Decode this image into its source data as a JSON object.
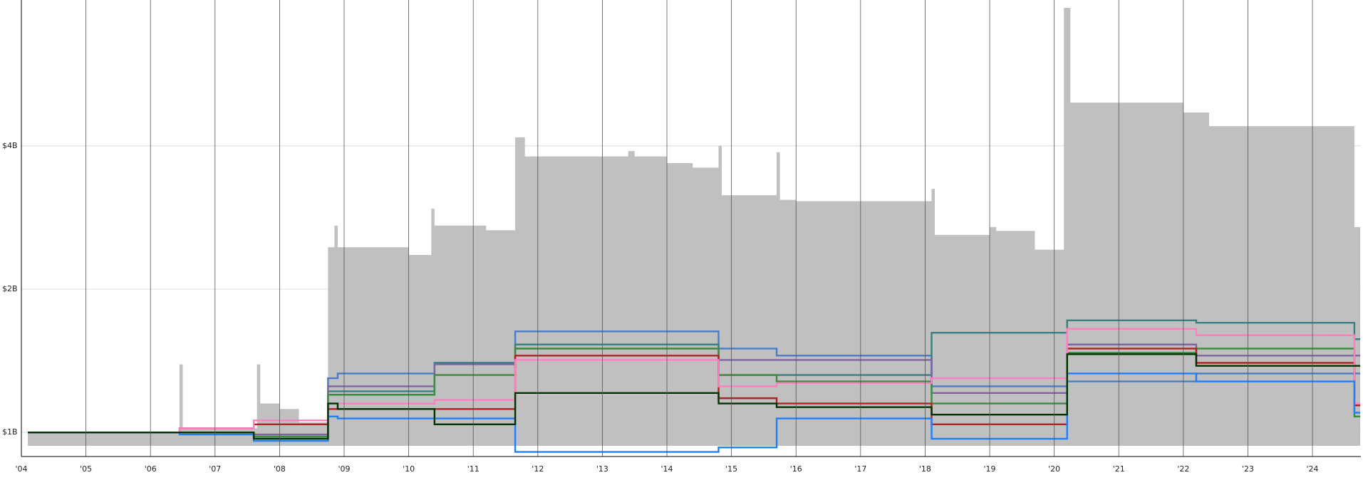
{
  "chart_data": {
    "type": "step",
    "log_scale": true,
    "grid": true,
    "xlim": [
      2004,
      2024.75
    ],
    "xticks": [
      {
        "value": 2004,
        "label": "'04"
      },
      {
        "value": 2005,
        "label": "'05"
      },
      {
        "value": 2006,
        "label": "'06"
      },
      {
        "value": 2007,
        "label": "'07"
      },
      {
        "value": 2008,
        "label": "'08"
      },
      {
        "value": 2009,
        "label": "'09"
      },
      {
        "value": 2010,
        "label": "'10"
      },
      {
        "value": 2011,
        "label": "'11"
      },
      {
        "value": 2012,
        "label": "'12"
      },
      {
        "value": 2013,
        "label": "'13"
      },
      {
        "value": 2014,
        "label": "'14"
      },
      {
        "value": 2015,
        "label": "'15"
      },
      {
        "value": 2016,
        "label": "'16"
      },
      {
        "value": 2017,
        "label": "'17"
      },
      {
        "value": 2018,
        "label": "'18"
      },
      {
        "value": 2019,
        "label": "'19"
      },
      {
        "value": 2020,
        "label": "'20"
      },
      {
        "value": 2021,
        "label": "'21"
      },
      {
        "value": 2022,
        "label": "'22"
      },
      {
        "value": 2023,
        "label": "'23"
      },
      {
        "value": 2024,
        "label": "'24"
      }
    ],
    "ylim": [
      0.89,
      8.1
    ],
    "yticks": [
      {
        "value": 1,
        "label": "$1B"
      },
      {
        "value": 2,
        "label": "$2B"
      },
      {
        "value": 4,
        "label": "$4B"
      }
    ],
    "series": [
      {
        "style": "area",
        "color": "#c0c0c0",
        "x": [
          2004.1,
          2006.4,
          2006.45,
          2006.5,
          2007.6,
          2007.65,
          2007.7,
          2008.0,
          2008.3,
          2008.75,
          2008.85,
          2008.9,
          2010.0,
          2010.35,
          2010.4,
          2011.2,
          2011.65,
          2011.8,
          2013.4,
          2013.5,
          2014.0,
          2014.4,
          2014.8,
          2014.85,
          2015.7,
          2015.75,
          2016.0,
          2018.1,
          2018.15,
          2018.2,
          2019.0,
          2019.1,
          2019.7,
          2020.15,
          2020.25,
          2022.0,
          2022.4,
          2024.65,
          2024.74
        ],
        "values": [
          1.0,
          1.0,
          1.39,
          1.02,
          1.02,
          1.39,
          1.15,
          1.12,
          1.05,
          2.45,
          2.72,
          2.45,
          2.36,
          2.95,
          2.72,
          2.66,
          4.17,
          3.8,
          3.9,
          3.8,
          3.68,
          3.6,
          4.0,
          3.15,
          3.88,
          3.08,
          3.06,
          3.25,
          2.6,
          2.6,
          2.7,
          2.65,
          2.42,
          7.8,
          4.93,
          4.7,
          4.4,
          2.7,
          2.7
        ]
      },
      {
        "style": "line",
        "color": "#4a7cc4",
        "x": [
          2004.1,
          2006.45,
          2007.6,
          2008.75,
          2008.9,
          2010.4,
          2011.65,
          2014.8,
          2015.7,
          2018.1,
          2020.2,
          2022.2,
          2024.65,
          2024.74
        ],
        "values": [
          1.0,
          1.0,
          0.98,
          1.3,
          1.33,
          1.4,
          1.63,
          1.5,
          1.45,
          1.25,
          1.28,
          1.33,
          1.33,
          1.33
        ]
      },
      {
        "style": "line",
        "color": "#3a8080",
        "x": [
          2004.1,
          2006.45,
          2007.6,
          2008.75,
          2008.9,
          2010.4,
          2011.65,
          2014.8,
          2015.7,
          2018.1,
          2020.2,
          2022.2,
          2024.65,
          2024.74
        ],
        "values": [
          1.0,
          1.0,
          0.98,
          1.22,
          1.22,
          1.4,
          1.53,
          1.32,
          1.32,
          1.62,
          1.72,
          1.7,
          1.57,
          1.57
        ]
      },
      {
        "style": "line",
        "color": "#8064a2",
        "x": [
          2004.1,
          2006.45,
          2007.6,
          2008.75,
          2008.9,
          2010.4,
          2011.65,
          2014.8,
          2015.7,
          2018.1,
          2020.2,
          2022.2,
          2024.65,
          2024.74
        ],
        "values": [
          1.0,
          1.0,
          0.99,
          1.25,
          1.25,
          1.39,
          1.5,
          1.42,
          1.42,
          1.21,
          1.53,
          1.45,
          1.45,
          1.45
        ]
      },
      {
        "style": "line",
        "color": "#3d8b3d",
        "x": [
          2004.1,
          2006.45,
          2007.6,
          2008.75,
          2008.9,
          2010.4,
          2011.65,
          2014.8,
          2015.7,
          2018.1,
          2020.2,
          2022.2,
          2024.65,
          2024.74
        ],
        "values": [
          1.0,
          1.0,
          0.98,
          1.2,
          1.2,
          1.32,
          1.5,
          1.32,
          1.28,
          1.15,
          1.47,
          1.5,
          1.08,
          1.08
        ]
      },
      {
        "style": "line",
        "color": "#b22222",
        "x": [
          2004.1,
          2006.45,
          2007.6,
          2008.75,
          2008.9,
          2010.4,
          2011.65,
          2014.8,
          2015.7,
          2018.1,
          2020.2,
          2022.2,
          2024.65,
          2024.74
        ],
        "values": [
          1.0,
          1.02,
          1.04,
          1.12,
          1.12,
          1.12,
          1.45,
          1.18,
          1.15,
          1.04,
          1.5,
          1.4,
          1.14,
          1.14
        ]
      },
      {
        "style": "line",
        "color": "#ff7fbf",
        "x": [
          2004.1,
          2006.45,
          2007.6,
          2008.75,
          2008.9,
          2010.4,
          2011.65,
          2014.8,
          2015.7,
          2018.1,
          2020.2,
          2022.2,
          2024.65,
          2024.74
        ],
        "values": [
          1.0,
          1.02,
          1.06,
          1.15,
          1.15,
          1.17,
          1.42,
          1.25,
          1.27,
          1.3,
          1.65,
          1.6,
          1.15,
          1.15
        ]
      },
      {
        "style": "line",
        "color": "#1e7fff",
        "x": [
          2004.1,
          2006.45,
          2007.6,
          2008.75,
          2008.9,
          2010.4,
          2011.65,
          2014.8,
          2015.7,
          2018.1,
          2020.2,
          2022.2,
          2024.65,
          2024.74
        ],
        "values": [
          1.0,
          0.99,
          0.96,
          1.08,
          1.07,
          1.07,
          0.91,
          0.93,
          1.07,
          0.97,
          1.33,
          1.28,
          1.1,
          1.1
        ]
      },
      {
        "style": "line",
        "color": "#003300",
        "x": [
          2004.1,
          2006.45,
          2007.6,
          2008.75,
          2008.9,
          2010.4,
          2011.65,
          2014.8,
          2015.7,
          2018.1,
          2020.2,
          2022.2,
          2024.65,
          2024.74
        ],
        "values": [
          1.0,
          1.0,
          0.97,
          1.15,
          1.12,
          1.04,
          1.21,
          1.15,
          1.13,
          1.09,
          1.46,
          1.38,
          1.38,
          1.38
        ]
      }
    ]
  }
}
